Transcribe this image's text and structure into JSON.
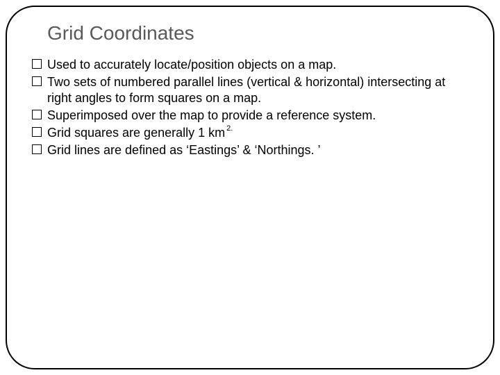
{
  "slide": {
    "title": "Grid Coordinates",
    "title_color": "#595959",
    "title_fontsize": 28,
    "body_fontsize": 18,
    "body_color": "#000000",
    "border_color": "#000000",
    "border_radius": 42,
    "background_color": "#ffffff",
    "bullets": [
      {
        "text": "Used to accurately locate/position objects on a map."
      },
      {
        "text": "Two sets of numbered parallel lines (vertical & horizontal) intersecting at right angles to form squares on a map."
      },
      {
        "text": "Superimposed over the map to provide a reference system."
      },
      {
        "text": "Grid squares are generally 1 km",
        "superscript": "2."
      },
      {
        "text": "Grid lines are defined as ‘Eastings’ & ‘Northings. ’"
      }
    ]
  }
}
